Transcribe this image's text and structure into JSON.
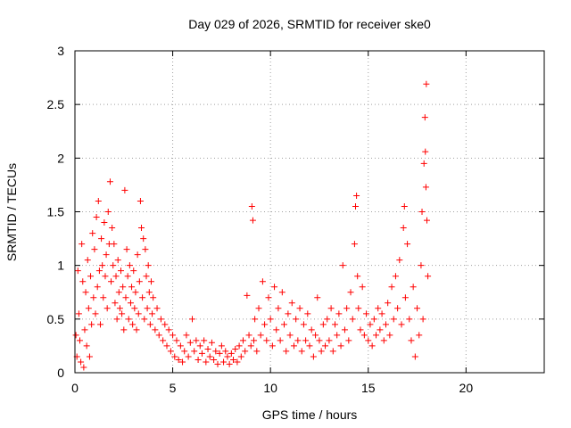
{
  "chart_data": {
    "type": "scatter",
    "title": "Day 029 of 2026, SRMTID for receiver ske0",
    "xlabel": "GPS time / hours",
    "ylabel": "SRMTID / TECUs",
    "xlim": [
      0,
      24
    ],
    "ylim": [
      0,
      3
    ],
    "xticks": [
      0,
      5,
      10,
      15,
      20
    ],
    "yticks": [
      0,
      0.5,
      1,
      1.5,
      2,
      2.5,
      3
    ],
    "xtick_labels": [
      "0",
      "5",
      "10",
      "15",
      "20"
    ],
    "ytick_labels": [
      "0",
      "0.5",
      "1",
      "1.5",
      "2",
      "2.5",
      "3"
    ],
    "grid": true,
    "marker": "+",
    "color": "#ff0000",
    "series": [
      {
        "name": "SRMTID",
        "points": [
          [
            0.05,
            0.35
          ],
          [
            0.1,
            0.15
          ],
          [
            0.15,
            0.95
          ],
          [
            0.2,
            0.55
          ],
          [
            0.25,
            0.3
          ],
          [
            0.3,
            0.1
          ],
          [
            0.35,
            1.2
          ],
          [
            0.4,
            0.85
          ],
          [
            0.45,
            0.05
          ],
          [
            0.5,
            0.4
          ],
          [
            0.55,
            0.75
          ],
          [
            0.6,
            0.25
          ],
          [
            0.65,
            1.05
          ],
          [
            0.7,
            0.6
          ],
          [
            0.75,
            0.15
          ],
          [
            0.8,
            0.9
          ],
          [
            0.85,
            0.45
          ],
          [
            0.9,
            1.3
          ],
          [
            0.95,
            0.7
          ],
          [
            1.0,
            1.15
          ],
          [
            1.05,
            0.55
          ],
          [
            1.1,
            1.45
          ],
          [
            1.15,
            0.8
          ],
          [
            1.2,
            1.6
          ],
          [
            1.25,
            0.95
          ],
          [
            1.3,
            0.45
          ],
          [
            1.35,
            1.25
          ],
          [
            1.4,
            1.0
          ],
          [
            1.45,
            0.7
          ],
          [
            1.5,
            1.4
          ],
          [
            1.55,
            0.9
          ],
          [
            1.6,
            1.1
          ],
          [
            1.65,
            0.6
          ],
          [
            1.7,
            1.5
          ],
          [
            1.75,
            1.2
          ],
          [
            1.8,
            1.78
          ],
          [
            1.85,
            0.85
          ],
          [
            1.9,
            1.35
          ],
          [
            1.95,
            1.0
          ],
          [
            2.0,
            1.2
          ],
          [
            2.05,
            0.65
          ],
          [
            2.1,
            0.9
          ],
          [
            2.15,
            0.5
          ],
          [
            2.2,
            1.05
          ],
          [
            2.25,
            0.75
          ],
          [
            2.3,
            0.6
          ],
          [
            2.35,
            0.95
          ],
          [
            2.4,
            0.55
          ],
          [
            2.45,
            0.8
          ],
          [
            2.5,
            0.4
          ],
          [
            2.55,
            1.7
          ],
          [
            2.6,
            0.7
          ],
          [
            2.65,
            1.15
          ],
          [
            2.7,
            0.9
          ],
          [
            2.75,
            0.5
          ],
          [
            2.8,
            1.0
          ],
          [
            2.85,
            0.65
          ],
          [
            2.9,
            0.8
          ],
          [
            2.95,
            0.45
          ],
          [
            3.0,
            0.95
          ],
          [
            3.05,
            0.6
          ],
          [
            3.1,
            0.75
          ],
          [
            3.15,
            0.4
          ],
          [
            3.2,
            1.1
          ],
          [
            3.25,
            0.55
          ],
          [
            3.3,
            0.85
          ],
          [
            3.35,
            1.6
          ],
          [
            3.4,
            1.35
          ],
          [
            3.45,
            0.7
          ],
          [
            3.5,
            1.25
          ],
          [
            3.55,
            0.5
          ],
          [
            3.6,
            1.15
          ],
          [
            3.65,
            0.9
          ],
          [
            3.7,
            0.6
          ],
          [
            3.75,
            1.0
          ],
          [
            3.8,
            0.75
          ],
          [
            3.85,
            0.45
          ],
          [
            3.9,
            0.85
          ],
          [
            3.95,
            0.55
          ],
          [
            4.0,
            0.7
          ],
          [
            4.1,
            0.4
          ],
          [
            4.2,
            0.6
          ],
          [
            4.3,
            0.35
          ],
          [
            4.4,
            0.5
          ],
          [
            4.5,
            0.3
          ],
          [
            4.6,
            0.45
          ],
          [
            4.7,
            0.25
          ],
          [
            4.8,
            0.4
          ],
          [
            4.9,
            0.2
          ],
          [
            5.0,
            0.35
          ],
          [
            5.1,
            0.15
          ],
          [
            5.2,
            0.3
          ],
          [
            5.3,
            0.12
          ],
          [
            5.4,
            0.25
          ],
          [
            5.5,
            0.1
          ],
          [
            5.6,
            0.2
          ],
          [
            5.7,
            0.35
          ],
          [
            5.8,
            0.15
          ],
          [
            5.9,
            0.28
          ],
          [
            6.0,
            0.5
          ],
          [
            6.1,
            0.2
          ],
          [
            6.2,
            0.3
          ],
          [
            6.3,
            0.12
          ],
          [
            6.4,
            0.25
          ],
          [
            6.5,
            0.18
          ],
          [
            6.6,
            0.3
          ],
          [
            6.7,
            0.1
          ],
          [
            6.8,
            0.22
          ],
          [
            6.9,
            0.15
          ],
          [
            7.0,
            0.28
          ],
          [
            7.1,
            0.12
          ],
          [
            7.2,
            0.2
          ],
          [
            7.3,
            0.08
          ],
          [
            7.4,
            0.18
          ],
          [
            7.5,
            0.25
          ],
          [
            7.6,
            0.1
          ],
          [
            7.7,
            0.2
          ],
          [
            7.8,
            0.15
          ],
          [
            7.9,
            0.08
          ],
          [
            8.0,
            0.18
          ],
          [
            8.1,
            0.12
          ],
          [
            8.2,
            0.22
          ],
          [
            8.3,
            0.1
          ],
          [
            8.4,
            0.25
          ],
          [
            8.5,
            0.15
          ],
          [
            8.6,
            0.3
          ],
          [
            8.7,
            0.2
          ],
          [
            8.8,
            0.72
          ],
          [
            8.9,
            0.35
          ],
          [
            9.0,
            0.25
          ],
          [
            9.05,
            1.55
          ],
          [
            9.1,
            1.42
          ],
          [
            9.15,
            0.3
          ],
          [
            9.2,
            0.5
          ],
          [
            9.3,
            0.2
          ],
          [
            9.4,
            0.6
          ],
          [
            9.5,
            0.35
          ],
          [
            9.6,
            0.85
          ],
          [
            9.7,
            0.45
          ],
          [
            9.8,
            0.3
          ],
          [
            9.9,
            0.7
          ],
          [
            10.0,
            0.5
          ],
          [
            10.1,
            0.25
          ],
          [
            10.2,
            0.8
          ],
          [
            10.3,
            0.4
          ],
          [
            10.4,
            0.6
          ],
          [
            10.5,
            0.3
          ],
          [
            10.6,
            0.75
          ],
          [
            10.7,
            0.45
          ],
          [
            10.8,
            0.2
          ],
          [
            10.9,
            0.55
          ],
          [
            11.0,
            0.35
          ],
          [
            11.1,
            0.65
          ],
          [
            11.2,
            0.25
          ],
          [
            11.3,
            0.5
          ],
          [
            11.4,
            0.3
          ],
          [
            11.5,
            0.6
          ],
          [
            11.6,
            0.2
          ],
          [
            11.7,
            0.45
          ],
          [
            11.8,
            0.3
          ],
          [
            11.9,
            0.55
          ],
          [
            12.0,
            0.25
          ],
          [
            12.1,
            0.4
          ],
          [
            12.2,
            0.15
          ],
          [
            12.3,
            0.35
          ],
          [
            12.4,
            0.7
          ],
          [
            12.5,
            0.3
          ],
          [
            12.6,
            0.2
          ],
          [
            12.7,
            0.45
          ],
          [
            12.8,
            0.25
          ],
          [
            12.9,
            0.5
          ],
          [
            13.0,
            0.3
          ],
          [
            13.1,
            0.6
          ],
          [
            13.2,
            0.2
          ],
          [
            13.3,
            0.45
          ],
          [
            13.4,
            0.35
          ],
          [
            13.5,
            0.55
          ],
          [
            13.6,
            0.25
          ],
          [
            13.7,
            1.0
          ],
          [
            13.8,
            0.4
          ],
          [
            13.9,
            0.6
          ],
          [
            14.0,
            0.3
          ],
          [
            14.1,
            0.75
          ],
          [
            14.2,
            0.5
          ],
          [
            14.3,
            1.2
          ],
          [
            14.35,
            1.55
          ],
          [
            14.4,
            1.65
          ],
          [
            14.45,
            0.9
          ],
          [
            14.5,
            0.6
          ],
          [
            14.6,
            0.4
          ],
          [
            14.7,
            0.8
          ],
          [
            14.8,
            0.35
          ],
          [
            14.9,
            0.55
          ],
          [
            15.0,
            0.3
          ],
          [
            15.1,
            0.45
          ],
          [
            15.2,
            0.25
          ],
          [
            15.3,
            0.5
          ],
          [
            15.4,
            0.35
          ],
          [
            15.5,
            0.6
          ],
          [
            15.6,
            0.4
          ],
          [
            15.7,
            0.55
          ],
          [
            15.8,
            0.3
          ],
          [
            15.9,
            0.45
          ],
          [
            16.0,
            0.65
          ],
          [
            16.1,
            0.35
          ],
          [
            16.2,
            0.8
          ],
          [
            16.3,
            0.5
          ],
          [
            16.4,
            0.9
          ],
          [
            16.5,
            0.6
          ],
          [
            16.6,
            1.05
          ],
          [
            16.7,
            0.45
          ],
          [
            16.8,
            1.35
          ],
          [
            16.85,
            1.55
          ],
          [
            16.9,
            0.7
          ],
          [
            17.0,
            1.2
          ],
          [
            17.1,
            0.5
          ],
          [
            17.2,
            0.3
          ],
          [
            17.3,
            0.8
          ],
          [
            17.4,
            0.15
          ],
          [
            17.5,
            0.6
          ],
          [
            17.6,
            0.35
          ],
          [
            17.7,
            1.0
          ],
          [
            17.75,
            1.5
          ],
          [
            17.8,
            0.5
          ],
          [
            17.85,
            1.95
          ],
          [
            17.9,
            2.38
          ],
          [
            17.92,
            2.06
          ],
          [
            17.95,
            1.73
          ],
          [
            17.97,
            2.69
          ],
          [
            18.0,
            1.42
          ],
          [
            18.05,
            0.9
          ]
        ]
      }
    ]
  }
}
